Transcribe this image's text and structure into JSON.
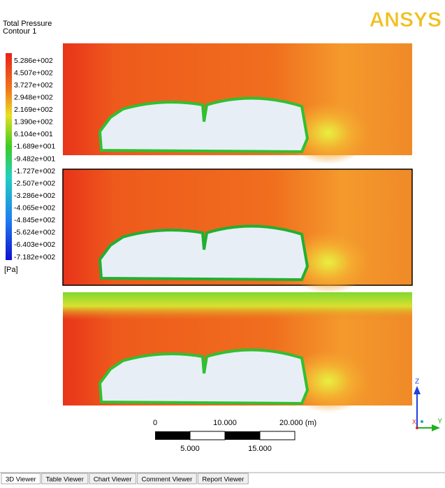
{
  "legend": {
    "title": "Total Pressure",
    "subtitle": "Contour 1",
    "labels": [
      "5.286e+002",
      "4.507e+002",
      "3.727e+002",
      "2.948e+002",
      "2.169e+002",
      "1.390e+002",
      "6.104e+001",
      "-1.689e+001",
      "-9.482e+001",
      "-1.727e+002",
      "-2.507e+002",
      "-3.286e+002",
      "-4.065e+002",
      "-4.845e+002",
      "-5.624e+002",
      "-6.403e+002",
      "-7.182e+002"
    ],
    "unit": "[Pa]"
  },
  "logo": "ANSYS",
  "scale": {
    "top_labels": [
      "0",
      "10.000",
      "20.000 (m)"
    ],
    "bottom_labels": [
      "5.000",
      "15.000"
    ]
  },
  "axes": {
    "z": "Z",
    "y": "Y",
    "x": "X"
  },
  "tabs": [
    "3D Viewer",
    "Table Viewer",
    "Chart Viewer",
    "Comment Viewer",
    "Report Viewer"
  ]
}
